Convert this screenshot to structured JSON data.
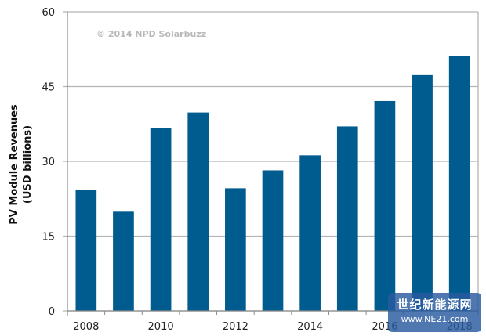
{
  "chart_data": {
    "type": "bar",
    "title": "",
    "xlabel": "",
    "ylabel": "PV Module Revenues (USD billions)",
    "ylabel_lines": [
      "PV Module Revenues",
      "(USD billions)"
    ],
    "categories": [
      "2008",
      "2009",
      "2010",
      "2011",
      "2012",
      "2013",
      "2014",
      "2015",
      "2016",
      "2017",
      "2018"
    ],
    "values": [
      24.2,
      19.9,
      36.7,
      39.8,
      24.6,
      28.2,
      31.2,
      37.0,
      42.1,
      47.3,
      51.1
    ],
    "x_tick_labels": [
      "2008",
      "2010",
      "2012",
      "2014",
      "2016",
      "2018"
    ],
    "ylim": [
      0,
      60
    ],
    "y_ticks": [
      0,
      15,
      30,
      45,
      60
    ],
    "grid": true,
    "bar_color": "#005b8f",
    "annotation": "© 2014 NPD Solarbuzz"
  },
  "watermark": {
    "chinese": "世纪新能源网",
    "url": "www.NE21.com"
  }
}
